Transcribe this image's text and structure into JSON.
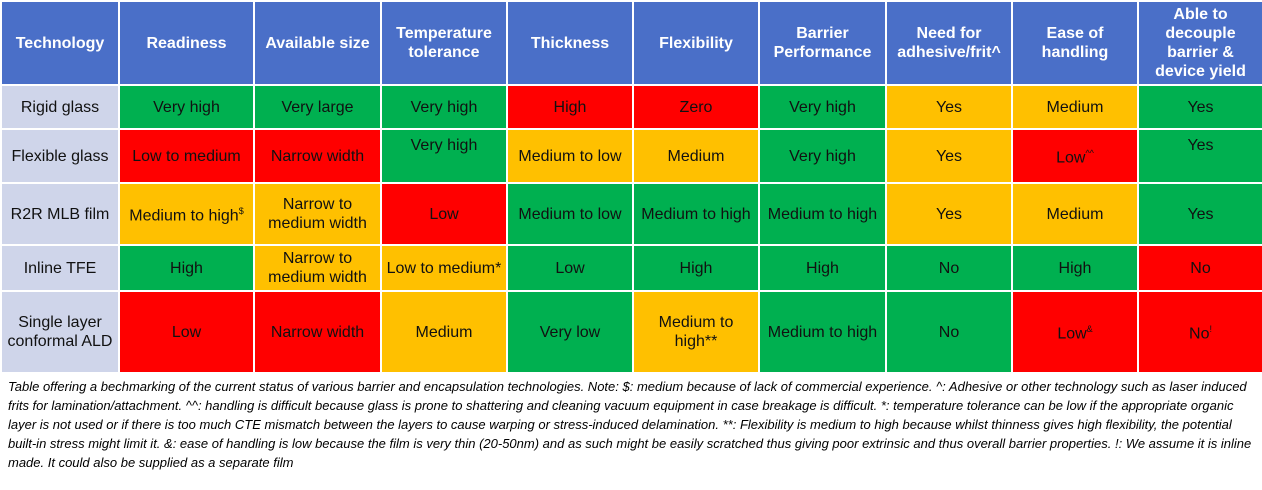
{
  "table": {
    "header": [
      "Technology",
      "Readiness",
      "Available size",
      "Temperature tolerance",
      "Thickness",
      "Flexibility",
      "Barrier Performance",
      "Need for adhesive/frit^",
      "Ease of handling",
      "Able to decouple barrier & device yield"
    ],
    "rows": [
      [
        {
          "text": "Rigid glass"
        },
        {
          "text": "Very high",
          "color": "#00b050"
        },
        {
          "text": "Very large",
          "color": "#00b050"
        },
        {
          "text": "Very high",
          "color": "#00b050"
        },
        {
          "text": "High",
          "color": "#ff0000"
        },
        {
          "text": "Zero",
          "color": "#ff0000"
        },
        {
          "text": "Very high",
          "color": "#00b050"
        },
        {
          "text": "Yes",
          "color": "#ffc000"
        },
        {
          "text": "Medium",
          "color": "#ffc000"
        },
        {
          "text": "Yes",
          "color": "#00b050"
        }
      ],
      [
        {
          "text": "Flexible glass"
        },
        {
          "text": "Low to medium",
          "color": "#ff0000"
        },
        {
          "text": "Narrow width",
          "color": "#ff0000"
        },
        {
          "text": "Very high",
          "color": "#00b050"
        },
        {
          "text": "Medium to low",
          "color": "#ffc000"
        },
        {
          "text": "Medium",
          "color": "#ffc000"
        },
        {
          "text": "Very high",
          "color": "#00b050"
        },
        {
          "text": "Yes",
          "color": "#ffc000"
        },
        {
          "text": "Low",
          "sup": "^^",
          "color": "#ff0000"
        },
        {
          "text": "Yes",
          "color": "#00b050"
        }
      ],
      [
        {
          "text": "R2R MLB film"
        },
        {
          "text": "Medium to high",
          "sup": "$",
          "color": "#ffc000"
        },
        {
          "text": "Narrow to medium width",
          "color": "#ffc000"
        },
        {
          "text": "Low",
          "color": "#ff0000"
        },
        {
          "text": "Medium to low",
          "color": "#00b050"
        },
        {
          "text": "Medium to high",
          "color": "#00b050"
        },
        {
          "text": "Medium to high",
          "color": "#00b050"
        },
        {
          "text": "Yes",
          "color": "#ffc000"
        },
        {
          "text": "Medium",
          "color": "#ffc000"
        },
        {
          "text": "Yes",
          "color": "#00b050"
        }
      ],
      [
        {
          "text": "Inline TFE"
        },
        {
          "text": "High",
          "color": "#00b050"
        },
        {
          "text": "Narrow to medium width",
          "color": "#ffc000"
        },
        {
          "text": "Low to medium*",
          "color": "#ffc000"
        },
        {
          "text": "Low",
          "color": "#00b050"
        },
        {
          "text": "High",
          "color": "#00b050"
        },
        {
          "text": "High",
          "color": "#00b050"
        },
        {
          "text": "No",
          "color": "#00b050"
        },
        {
          "text": "High",
          "color": "#00b050"
        },
        {
          "text": "No",
          "color": "#ff0000"
        }
      ],
      [
        {
          "text": "Single layer conformal ALD"
        },
        {
          "text": "Low",
          "color": "#ff0000"
        },
        {
          "text": "Narrow width",
          "color": "#ff0000"
        },
        {
          "text": "Medium",
          "color": "#ffc000"
        },
        {
          "text": "Very low",
          "color": "#00b050"
        },
        {
          "text": "Medium to high**",
          "color": "#ffc000"
        },
        {
          "text": "Medium to high",
          "color": "#00b050"
        },
        {
          "text": "No",
          "color": "#00b050"
        },
        {
          "text": "Low",
          "sup": "&",
          "color": "#ff0000"
        },
        {
          "text": "No",
          "sup": "!",
          "color": "#ff0000"
        }
      ]
    ],
    "caption": "Table offering a bechmarking of the current status of various barrier and encapsulation technologies. Note: $: medium because of lack of commercial experience. ^: Adhesive or other technology such as laser induced frits for lamination/attachment. ^^: handling is difficult because glass is prone to shattering and cleaning vacuum equipment in case breakage is difficult.  *: temperature tolerance can be low if the appropriate organic layer is not used or if there is too much CTE mismatch between the layers to cause warping or stress-induced delamination.  **: Flexibility is medium to high because whilst thinness gives high flexibility, the potential built-in stress might limit it. &:  ease of handling is low because the film is very thin (20-50nm) and as such might be easily scratched thus giving poor extrinsic and thus overall barrier properties. !:  We assume it is inline made. It could also be supplied as a separate film"
  }
}
